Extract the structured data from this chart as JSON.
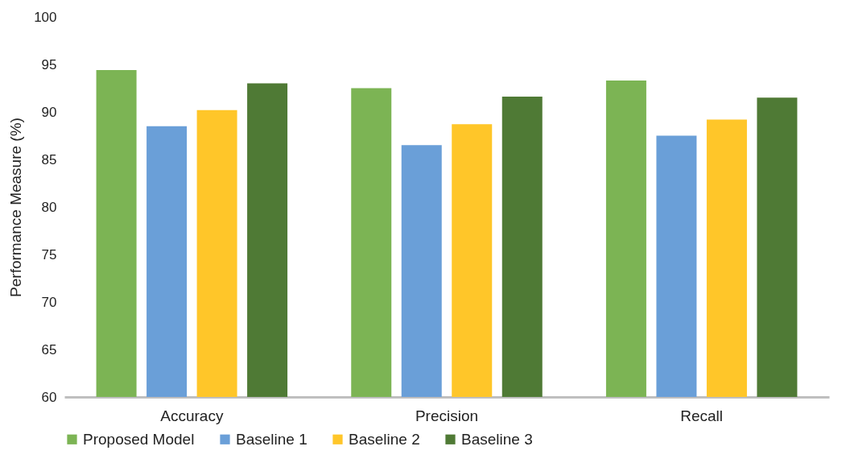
{
  "chart_data": {
    "type": "bar",
    "ylabel": "Performance Measure (%)",
    "categories": [
      "Accuracy",
      "Precision",
      "Recall"
    ],
    "series": [
      {
        "name": "Proposed Model",
        "color": "#7cb454",
        "values": [
          94.4,
          92.5,
          93.3
        ]
      },
      {
        "name": "Baseline 1",
        "color": "#6a9fd8",
        "values": [
          88.5,
          86.5,
          87.5
        ]
      },
      {
        "name": "Baseline 2",
        "color": "#ffc629",
        "values": [
          90.2,
          88.7,
          89.2
        ]
      },
      {
        "name": "Baseline 3",
        "color": "#4f7a35",
        "values": [
          93.0,
          91.6,
          91.5
        ]
      }
    ],
    "ylim": [
      60,
      100
    ],
    "yticks": [
      60,
      65,
      70,
      75,
      80,
      85,
      90,
      95,
      100
    ],
    "grid": false,
    "legend": "bottom"
  }
}
